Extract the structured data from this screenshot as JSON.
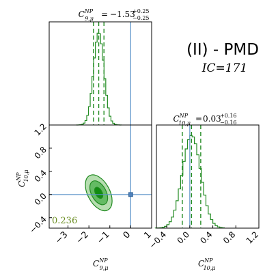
{
  "chart_data": {
    "type": "corner",
    "model_label": "(II) - PMD",
    "ic_label": "IC=171",
    "param_x": {
      "symbol": "C",
      "superscript": "NP",
      "subscript": "9,μ",
      "axis_label": "C^{NP}_{9,μ}",
      "axis_range": [
        -3.9,
        1.0
      ],
      "ticks": [
        -3,
        -2,
        -1,
        0,
        1
      ],
      "tick_labels": [
        "−3",
        "−2",
        "−1",
        "0",
        "1"
      ],
      "title_value": "−1.53",
      "title_plus": "+0.25",
      "title_minus": "−0.25",
      "median": -1.53,
      "quantile_low": -1.78,
      "quantile_high": -1.28,
      "sm_value": 0
    },
    "param_y": {
      "symbol": "C",
      "superscript": "NP",
      "subscript": "10,μ",
      "axis_label": "C^{NP}_{10,μ}",
      "axis_range": [
        -0.58,
        1.2
      ],
      "ticks": [
        -0.4,
        0.0,
        0.4,
        0.8,
        1.2
      ],
      "tick_labels": [
        "−0.4",
        "0.0",
        "0.4",
        "0.8",
        "1.2"
      ],
      "title_value": "0.03",
      "title_plus": "+0.16",
      "title_minus": "−0.16",
      "median": 0.03,
      "quantile_low": -0.13,
      "quantile_high": 0.19,
      "sm_value": 0
    },
    "correlation_label": "0.236",
    "contour_levels": [
      "1σ",
      "2σ",
      "3σ"
    ],
    "colors": {
      "histogram": "#228b22",
      "contour_outer": "#b6deb0",
      "contour_mid": "#64bb64",
      "contour_inner": "#118c11",
      "reference_line": "#5b93c9",
      "reference_marker": "#4f81bd",
      "correlation_text": "#6b8e23"
    }
  }
}
